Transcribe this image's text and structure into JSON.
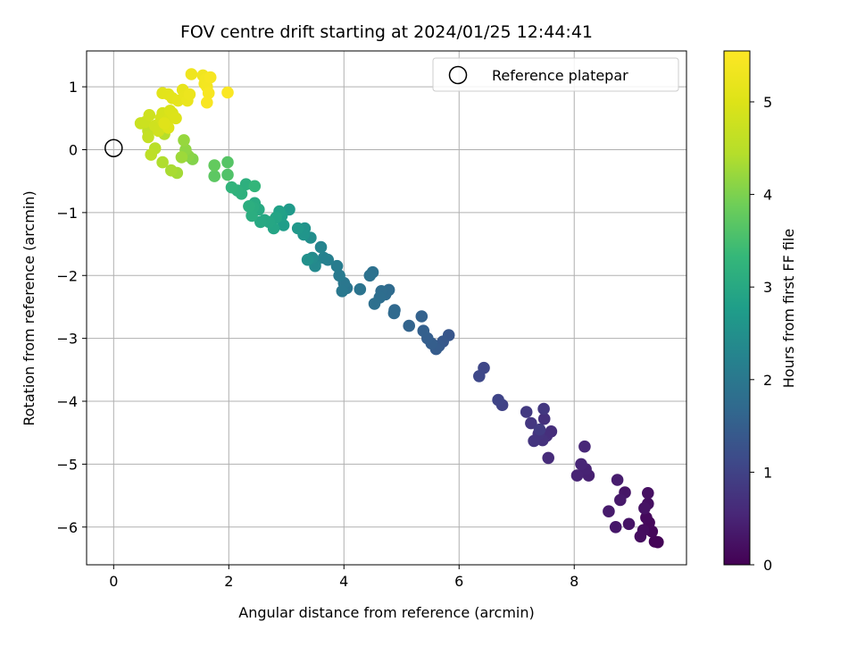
{
  "chart_data": {
    "type": "scatter",
    "title": "FOV centre drift starting at 2024/01/25 12:44:41",
    "xlabel": "Angular distance from reference (arcmin)",
    "ylabel": "Rotation from reference (arcmin)",
    "xlim": [
      -0.47,
      9.95
    ],
    "ylim": [
      -6.6,
      1.57
    ],
    "xticks": [
      0,
      2,
      4,
      6,
      8
    ],
    "yticks": [
      1,
      0,
      -1,
      -2,
      -3,
      -4,
      -5,
      -6
    ],
    "xtick_labels": [
      "0",
      "2",
      "4",
      "6",
      "8"
    ],
    "ytick_labels": [
      "1",
      "0",
      "−1",
      "−2",
      "−3",
      "−4",
      "−5",
      "−6"
    ],
    "grid": true,
    "colorbar": {
      "label": "Hours from first FF file",
      "range": [
        0,
        5.55
      ],
      "ticks": [
        0,
        1,
        2,
        3,
        4,
        5
      ],
      "tick_labels": [
        "0",
        "1",
        "2",
        "3",
        "4",
        "5"
      ],
      "colormap": "viridis"
    },
    "legend": {
      "placement": "top-right",
      "entries": [
        {
          "marker": "open-circle",
          "label": "Reference platepar"
        }
      ]
    },
    "reference_point": {
      "x": 0,
      "y": 0
    },
    "points": [
      [
        9.45,
        -6.24,
        0.03
      ],
      [
        9.4,
        -6.23,
        0.05
      ],
      [
        9.35,
        -6.07,
        0.08
      ],
      [
        9.3,
        -5.93,
        0.1
      ],
      [
        9.25,
        -5.85,
        0.12
      ],
      [
        9.2,
        -6.05,
        0.15
      ],
      [
        9.15,
        -6.15,
        0.17
      ],
      [
        9.28,
        -5.63,
        0.2
      ],
      [
        9.28,
        -5.46,
        0.22
      ],
      [
        9.22,
        -5.7,
        0.25
      ],
      [
        8.95,
        -5.95,
        0.27
      ],
      [
        8.88,
        -5.45,
        0.3
      ],
      [
        8.72,
        -6.0,
        0.32
      ],
      [
        8.8,
        -5.57,
        0.35
      ],
      [
        8.6,
        -5.75,
        0.37
      ],
      [
        8.75,
        -5.25,
        0.4
      ],
      [
        8.25,
        -5.18,
        0.45
      ],
      [
        8.2,
        -5.08,
        0.48
      ],
      [
        8.05,
        -5.18,
        0.5
      ],
      [
        8.12,
        -5.0,
        0.53
      ],
      [
        8.18,
        -4.72,
        0.55
      ],
      [
        7.55,
        -4.9,
        0.62
      ],
      [
        7.6,
        -4.48,
        0.65
      ],
      [
        7.52,
        -4.55,
        0.68
      ],
      [
        7.48,
        -4.28,
        0.7
      ],
      [
        7.45,
        -4.62,
        0.73
      ],
      [
        7.38,
        -4.52,
        0.75
      ],
      [
        7.3,
        -4.63,
        0.78
      ],
      [
        7.25,
        -4.35,
        0.8
      ],
      [
        7.47,
        -4.12,
        0.83
      ],
      [
        7.17,
        -4.17,
        0.86
      ],
      [
        7.4,
        -4.45,
        0.88
      ],
      [
        6.75,
        -4.06,
        1.0
      ],
      [
        6.68,
        -3.98,
        1.03
      ],
      [
        6.43,
        -3.47,
        1.07
      ],
      [
        6.35,
        -3.6,
        1.1
      ],
      [
        5.82,
        -2.95,
        1.35
      ],
      [
        5.72,
        -3.05,
        1.38
      ],
      [
        5.65,
        -3.12,
        1.42
      ],
      [
        5.6,
        -3.17,
        1.45
      ],
      [
        5.52,
        -3.08,
        1.48
      ],
      [
        5.45,
        -3.0,
        1.5
      ],
      [
        5.38,
        -2.88,
        1.53
      ],
      [
        5.35,
        -2.65,
        1.55
      ],
      [
        5.13,
        -2.8,
        1.6
      ],
      [
        4.88,
        -2.55,
        1.68
      ],
      [
        4.87,
        -2.6,
        1.7
      ],
      [
        4.78,
        -2.23,
        1.73
      ],
      [
        4.72,
        -2.3,
        1.75
      ],
      [
        4.65,
        -2.25,
        1.78
      ],
      [
        4.62,
        -2.35,
        1.8
      ],
      [
        4.53,
        -2.45,
        1.83
      ],
      [
        4.5,
        -1.95,
        1.85
      ],
      [
        4.45,
        -2.0,
        1.88
      ],
      [
        4.28,
        -2.22,
        1.92
      ],
      [
        4.05,
        -2.2,
        1.95
      ],
      [
        4.0,
        -2.12,
        1.98
      ],
      [
        3.97,
        -2.25,
        2.0
      ],
      [
        3.92,
        -2.0,
        2.05
      ],
      [
        3.88,
        -1.85,
        2.1
      ],
      [
        3.72,
        -1.75,
        2.15
      ],
      [
        3.65,
        -1.72,
        2.2
      ],
      [
        3.6,
        -1.55,
        2.25
      ],
      [
        3.5,
        -1.8,
        2.3
      ],
      [
        3.5,
        -1.85,
        2.35
      ],
      [
        3.45,
        -1.72,
        2.4
      ],
      [
        3.42,
        -1.4,
        2.45
      ],
      [
        3.37,
        -1.75,
        2.5
      ],
      [
        3.32,
        -1.25,
        2.55
      ],
      [
        3.3,
        -1.35,
        2.6
      ],
      [
        3.2,
        -1.25,
        2.65
      ],
      [
        3.05,
        -0.95,
        2.7
      ],
      [
        2.95,
        -1.2,
        2.75
      ],
      [
        2.92,
        -1.05,
        2.8
      ],
      [
        2.88,
        -0.98,
        2.85
      ],
      [
        2.82,
        -1.08,
        2.9
      ],
      [
        2.78,
        -1.25,
        2.92
      ],
      [
        2.7,
        -1.15,
        2.95
      ],
      [
        2.62,
        -1.12,
        2.98
      ],
      [
        2.55,
        -1.15,
        3.0
      ],
      [
        2.52,
        -0.95,
        3.03
      ],
      [
        2.45,
        -0.85,
        3.05
      ],
      [
        2.42,
        -0.92,
        3.08
      ],
      [
        2.4,
        -1.05,
        3.1
      ],
      [
        2.35,
        -0.9,
        3.13
      ],
      [
        2.3,
        -0.55,
        3.15
      ],
      [
        2.22,
        -0.7,
        3.18
      ],
      [
        2.15,
        -0.65,
        3.2
      ],
      [
        2.05,
        -0.6,
        3.25
      ],
      [
        2.45,
        -0.58,
        3.28
      ],
      [
        1.98,
        -0.4,
        3.6
      ],
      [
        1.98,
        -0.2,
        3.65
      ],
      [
        1.75,
        -0.42,
        3.72
      ],
      [
        1.75,
        -0.25,
        3.78
      ],
      [
        1.37,
        -0.15,
        4.05
      ],
      [
        1.3,
        -0.1,
        4.1
      ],
      [
        1.25,
        0.0,
        4.15
      ],
      [
        1.22,
        0.15,
        4.2
      ],
      [
        1.18,
        -0.12,
        4.25
      ],
      [
        1.1,
        -0.37,
        4.3
      ],
      [
        1.0,
        -0.33,
        4.35
      ],
      [
        0.85,
        -0.2,
        4.4
      ],
      [
        0.88,
        0.25,
        4.45
      ],
      [
        0.72,
        0.02,
        4.5
      ],
      [
        0.65,
        -0.08,
        4.55
      ],
      [
        0.6,
        0.3,
        4.6
      ],
      [
        0.6,
        0.2,
        4.65
      ],
      [
        0.47,
        0.42,
        4.72
      ],
      [
        0.55,
        0.44,
        4.75
      ],
      [
        0.62,
        0.55,
        4.78
      ],
      [
        0.72,
        0.38,
        4.8
      ],
      [
        0.78,
        0.3,
        4.82
      ],
      [
        0.82,
        0.5,
        4.85
      ],
      [
        0.85,
        0.58,
        4.88
      ],
      [
        0.9,
        0.52,
        4.9
      ],
      [
        0.95,
        0.48,
        4.92
      ],
      [
        0.98,
        0.62,
        4.95
      ],
      [
        1.02,
        0.58,
        4.97
      ],
      [
        1.08,
        0.5,
        5.0
      ],
      [
        0.95,
        0.35,
        5.02
      ],
      [
        0.88,
        0.42,
        5.05
      ],
      [
        0.85,
        0.9,
        5.08
      ],
      [
        0.95,
        0.88,
        5.1
      ],
      [
        1.02,
        0.82,
        5.12
      ],
      [
        1.12,
        0.78,
        5.15
      ],
      [
        1.2,
        0.95,
        5.18
      ],
      [
        1.25,
        0.85,
        5.2
      ],
      [
        1.28,
        0.78,
        5.22
      ],
      [
        1.32,
        0.88,
        5.25
      ],
      [
        1.35,
        1.2,
        5.3
      ],
      [
        1.55,
        1.18,
        5.33
      ],
      [
        1.58,
        1.05,
        5.36
      ],
      [
        1.6,
        1.12,
        5.38
      ],
      [
        1.62,
        1.0,
        5.4
      ],
      [
        1.68,
        1.15,
        5.42
      ],
      [
        1.65,
        0.9,
        5.44
      ],
      [
        1.62,
        0.75,
        5.46
      ],
      [
        1.98,
        0.91,
        5.5
      ]
    ]
  }
}
